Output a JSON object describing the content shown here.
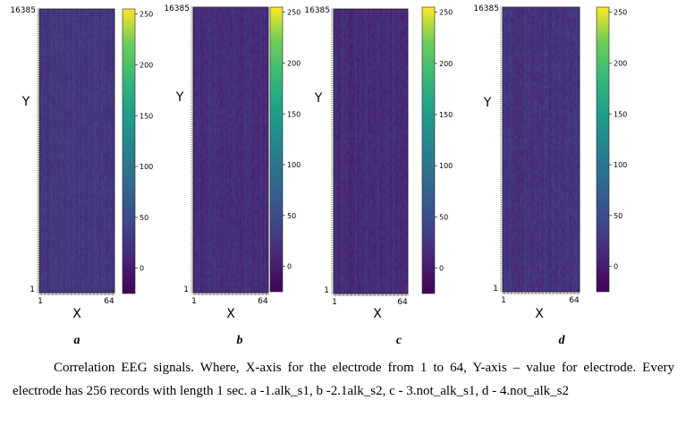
{
  "caption": "Correlation EEG signals. Where, X-axis for the electrode from 1 to 64, Y-axis – value for electrode. Every electrode has 256 records with length 1 sec. a -1.alk_s1, b -2.1alk_s2, c - 3.not_alk_s1, d - 4.not_alk_s2",
  "chart_data": [
    {
      "type": "heatmap",
      "panel_label": "a",
      "xlabel": "X",
      "ylabel": "Y",
      "x_ticks": [
        "1",
        "64"
      ],
      "y_ticks": [
        "16385",
        "1"
      ],
      "xlim": [
        1,
        64
      ],
      "ylim": [
        1,
        16385
      ],
      "colorbar_ticks": [
        "250",
        "200",
        "150",
        "100",
        "50",
        "0"
      ],
      "colorbar_range": [
        -25,
        255
      ],
      "colormap": "viridis",
      "values_summary": {
        "mean": 25,
        "min": 15,
        "max": 38
      }
    },
    {
      "type": "heatmap",
      "panel_label": "b",
      "xlabel": "X",
      "ylabel": "Y",
      "x_ticks": [
        "1",
        "64"
      ],
      "y_ticks": [
        "16385",
        "1"
      ],
      "xlim": [
        1,
        64
      ],
      "ylim": [
        1,
        16385
      ],
      "colorbar_ticks": [
        "250",
        "200",
        "150",
        "100",
        "50",
        "0"
      ],
      "colorbar_range": [
        -25,
        255
      ],
      "colormap": "viridis",
      "values_summary": {
        "mean": 15,
        "min": 5,
        "max": 28
      }
    },
    {
      "type": "heatmap",
      "panel_label": "c",
      "xlabel": "X",
      "ylabel": "Y",
      "x_ticks": [
        "1",
        "64"
      ],
      "y_ticks": [
        "16385",
        "1"
      ],
      "xlim": [
        1,
        64
      ],
      "ylim": [
        1,
        16385
      ],
      "colorbar_ticks": [
        "250",
        "200",
        "150",
        "100",
        "50",
        "0"
      ],
      "colorbar_range": [
        -25,
        255
      ],
      "colormap": "viridis",
      "values_summary": {
        "mean": 12,
        "min": 2,
        "max": 25
      }
    },
    {
      "type": "heatmap",
      "panel_label": "d",
      "xlabel": "X",
      "ylabel": "Y",
      "x_ticks": [
        "1",
        "64"
      ],
      "y_ticks": [
        "16385",
        "1"
      ],
      "xlim": [
        1,
        64
      ],
      "ylim": [
        1,
        16385
      ],
      "colorbar_ticks": [
        "250",
        "200",
        "150",
        "100",
        "50",
        "0"
      ],
      "colorbar_range": [
        -25,
        255
      ],
      "colormap": "viridis",
      "values_summary": {
        "mean": 20,
        "min": 8,
        "max": 35
      }
    }
  ]
}
